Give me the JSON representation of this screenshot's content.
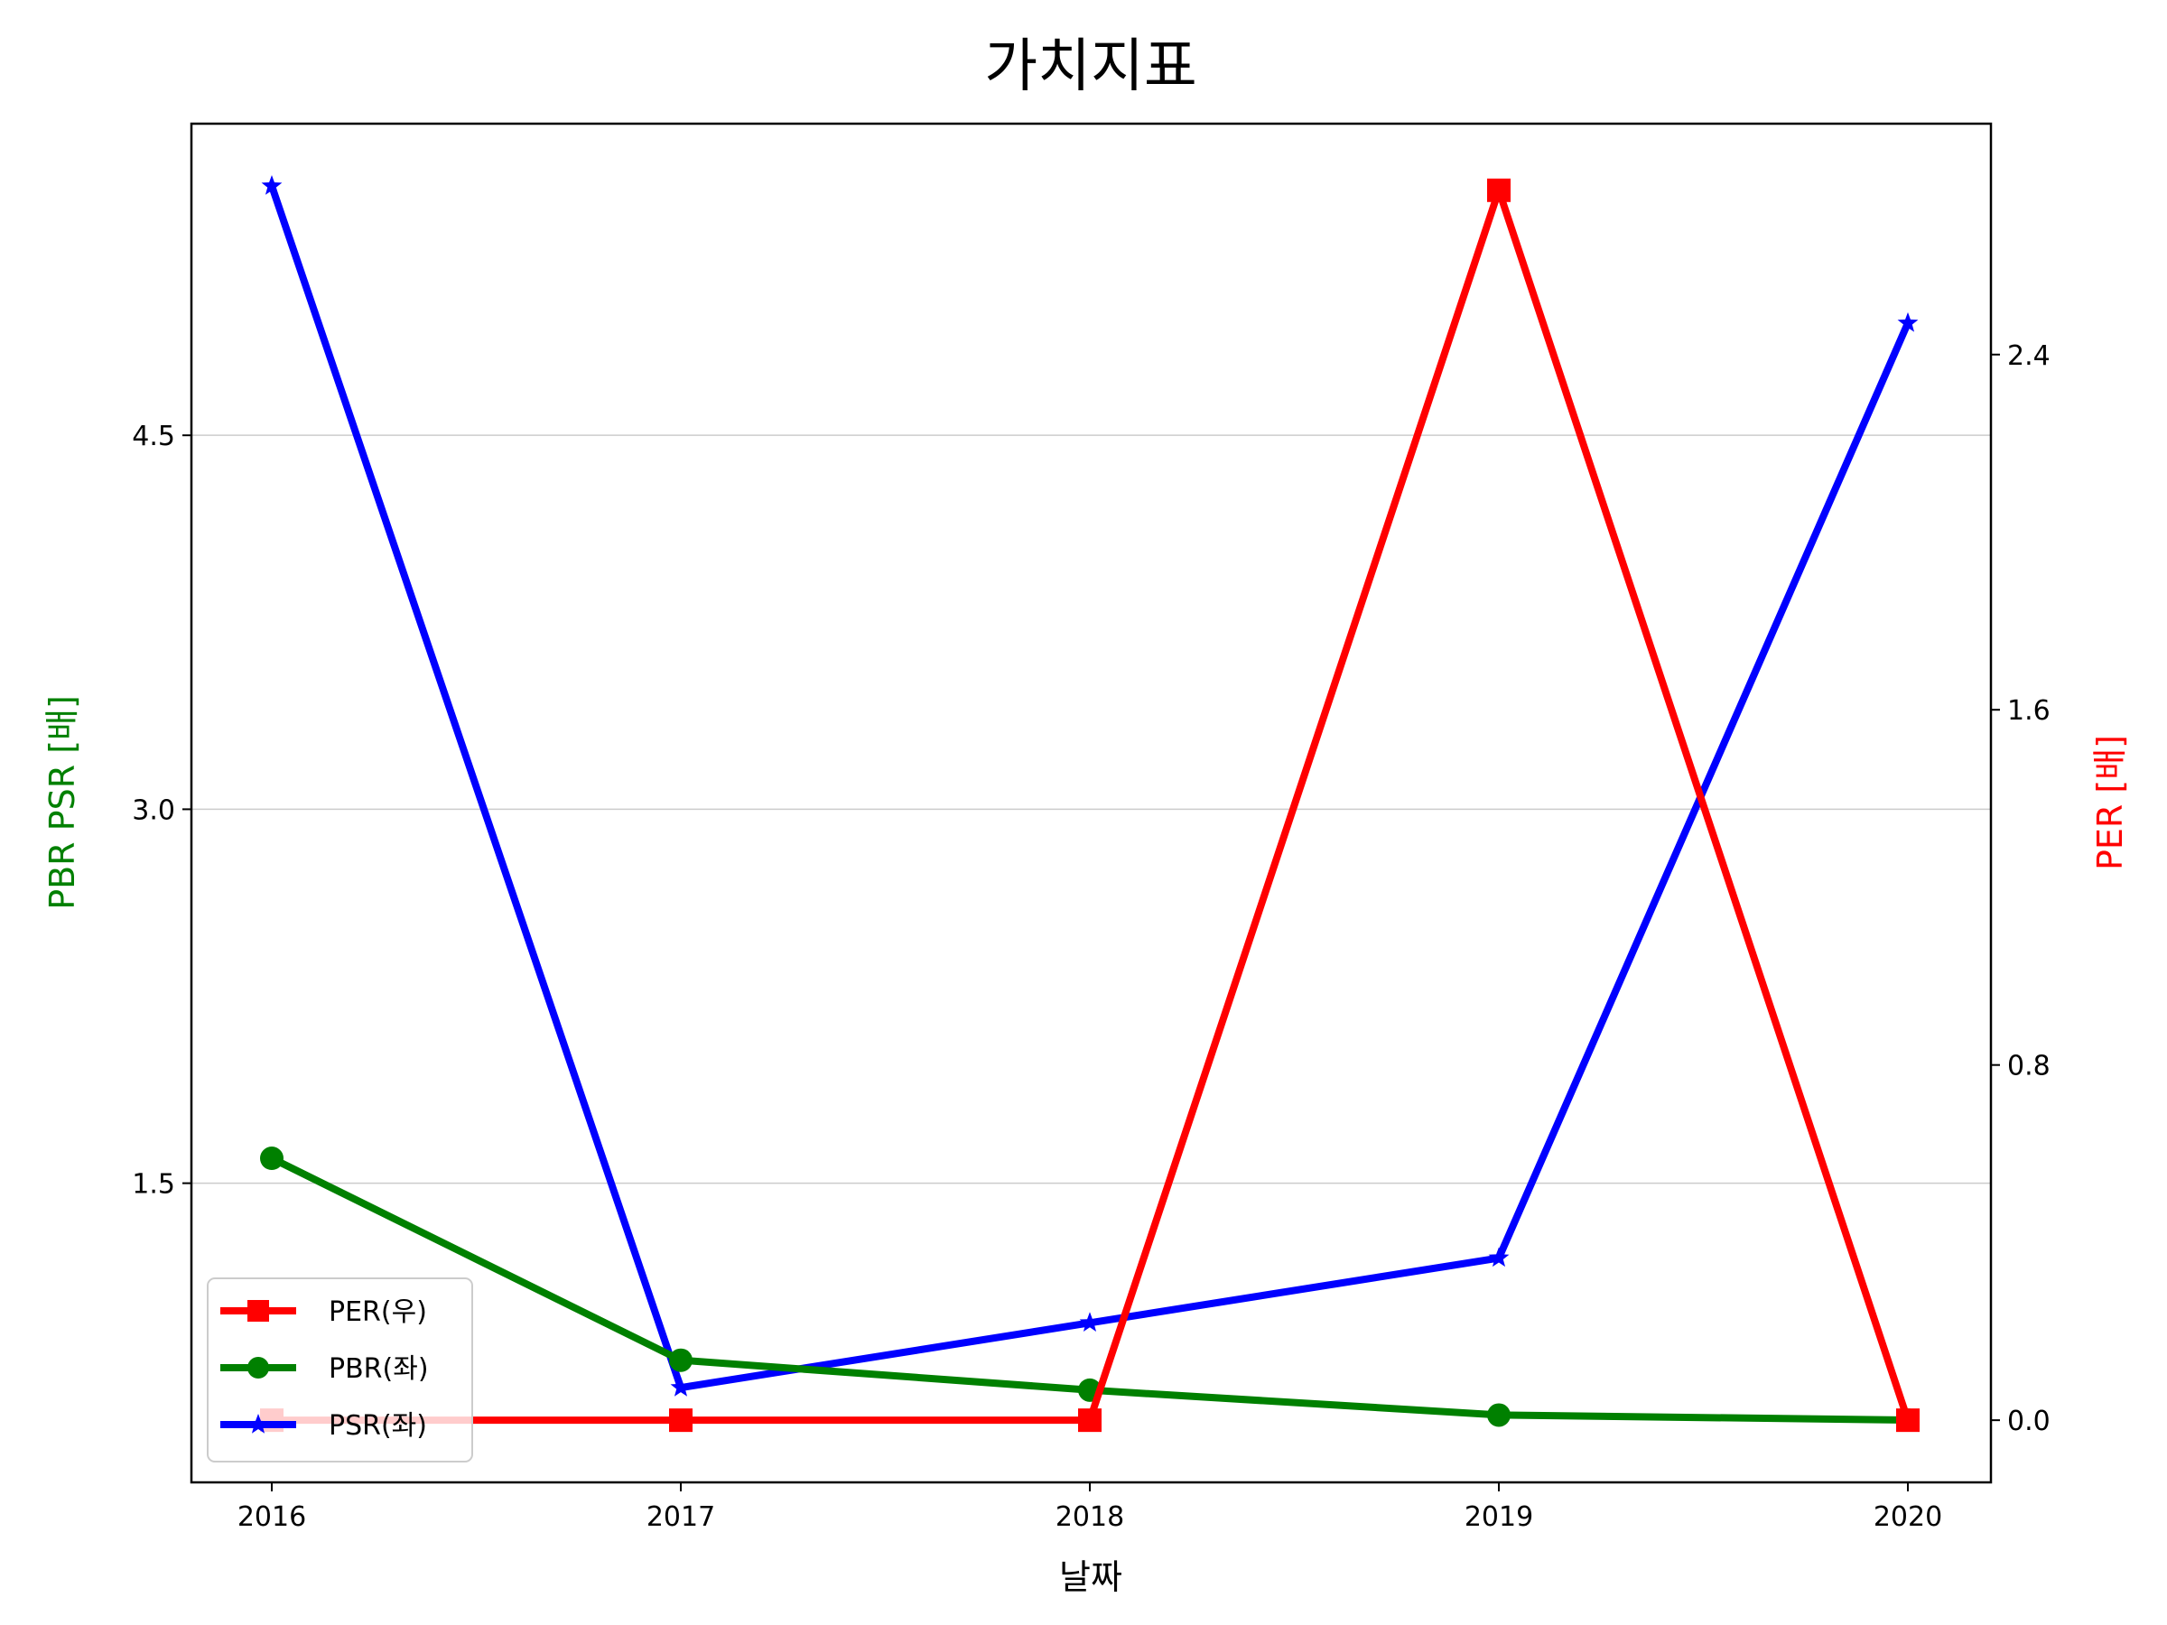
{
  "chart_data": {
    "type": "line",
    "title": "가치지표",
    "xlabel": "날짜",
    "ylabel_left": "PBR PSR [배]",
    "ylabel_right": "PER [배]",
    "categories": [
      "2016",
      "2017",
      "2018",
      "2019",
      "2020"
    ],
    "left_axis": {
      "ticks": [
        "1.5",
        "3.0",
        "4.5"
      ],
      "tick_values": [
        1.5,
        3.0,
        4.5
      ],
      "ylim": [
        0.3,
        5.75
      ]
    },
    "right_axis": {
      "ticks": [
        "0.0",
        "0.8",
        "1.6",
        "2.4"
      ],
      "tick_values": [
        0.0,
        0.8,
        1.6,
        2.4
      ],
      "ylim": [
        -0.14,
        2.92
      ]
    },
    "grid": "horizontal, left axis ticks",
    "legend_placement": "lower-left",
    "series": [
      {
        "name": "PER(우)",
        "axis": "right",
        "color": "#ff0000",
        "marker": "square",
        "values": [
          0.0,
          0.0,
          0.0,
          2.77,
          0.0
        ]
      },
      {
        "name": "PBR(좌)",
        "axis": "left",
        "color": "#008000",
        "marker": "circle",
        "values": [
          1.6,
          0.79,
          0.67,
          0.57,
          0.55
        ]
      },
      {
        "name": "PSR(좌)",
        "axis": "left",
        "color": "#0000ff",
        "marker": "star",
        "values": [
          5.5,
          0.68,
          0.94,
          1.2,
          4.95
        ]
      }
    ]
  }
}
